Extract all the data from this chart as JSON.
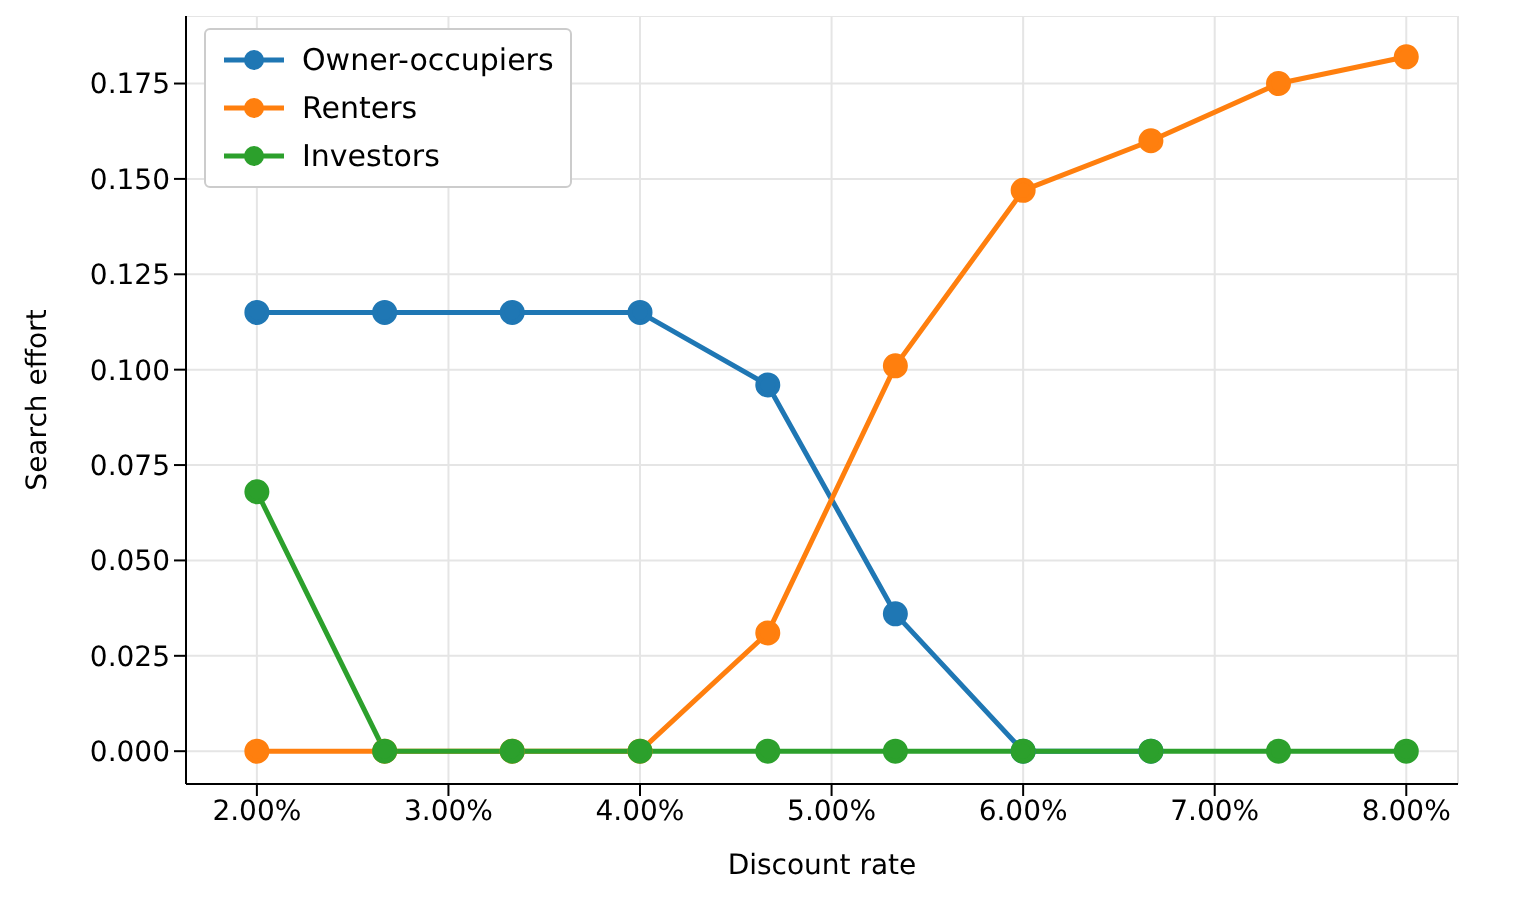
{
  "chart_data": {
    "type": "line",
    "xlabel": "Discount rate",
    "ylabel": "Search effort",
    "x": [
      2,
      2.667,
      3.333,
      4,
      4.667,
      5.333,
      6,
      6.667,
      7.333,
      8
    ],
    "series": [
      {
        "name": "Owner-occupiers",
        "color": "#1f77b4",
        "values": [
          0.115,
          0.115,
          0.115,
          0.115,
          0.096,
          0.036,
          0,
          0,
          null,
          null
        ]
      },
      {
        "name": "Renters",
        "color": "#ff7f0e",
        "values": [
          0,
          0,
          0,
          0,
          0.031,
          0.101,
          0.147,
          0.16,
          0.175,
          0.182
        ]
      },
      {
        "name": "Investors",
        "color": "#2ca02c",
        "values": [
          0.068,
          0,
          0,
          0,
          0,
          0,
          0,
          0,
          0,
          0
        ]
      }
    ],
    "xlim": [
      1.63,
      8.27
    ],
    "xticks": [
      {
        "value": 2,
        "label": "2.00%"
      },
      {
        "value": 3,
        "label": "3.00%"
      },
      {
        "value": 4,
        "label": "4.00%"
      },
      {
        "value": 5,
        "label": "5.00%"
      },
      {
        "value": 6,
        "label": "6.00%"
      },
      {
        "value": 7,
        "label": "7.00%"
      },
      {
        "value": 8,
        "label": "8.00%"
      }
    ],
    "ylim": [
      -0.0086,
      0.1927
    ],
    "yticks": [
      {
        "value": 0,
        "label": "0.000"
      },
      {
        "value": 0.025,
        "label": "0.025"
      },
      {
        "value": 0.05,
        "label": "0.050"
      },
      {
        "value": 0.075,
        "label": "0.075"
      },
      {
        "value": 0.1,
        "label": "0.100"
      },
      {
        "value": 0.125,
        "label": "0.125"
      },
      {
        "value": 0.15,
        "label": "0.150"
      },
      {
        "value": 0.175,
        "label": "0.175"
      }
    ],
    "grid": true,
    "legend": "top left",
    "marker": "circle",
    "line_style": "solid"
  }
}
